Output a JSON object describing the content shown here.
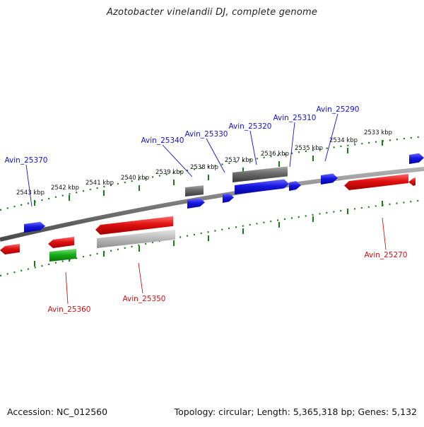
{
  "title": "Azotobacter vinelandii DJ, complete genome",
  "footer": {
    "accession": "Accession: NC_012560",
    "summary": "Topology: circular; Length: 5,365,318 bp; Genes: 5,132"
  },
  "colors": {
    "backbone": "#7a7a7a",
    "ruler": "#1a7a1a",
    "forward_label": "#1010cc",
    "reverse_label": "#cc1010",
    "gene_red": "#e01010",
    "gene_blue": "#1818e0",
    "gene_gray": "#6a6a6a",
    "gene_lightgray": "#b8b8b8",
    "gene_green": "#18b018"
  },
  "ruler_ticks": [
    "2533 kbp",
    "2534 kbp",
    "2535 kbp",
    "2536 kbp",
    "2537 kbp",
    "2538 kbp",
    "2539 kbp",
    "2540 kbp",
    "2541 kbp",
    "2542 kbp",
    "2543 kbp"
  ],
  "forward_labels": [
    "Avin_25290",
    "Avin_25310",
    "Avin_25320",
    "Avin_25330",
    "Avin_25340",
    "Avin_25370"
  ],
  "reverse_labels": [
    "Avin_25270",
    "Avin_25350",
    "Avin_25360"
  ]
}
